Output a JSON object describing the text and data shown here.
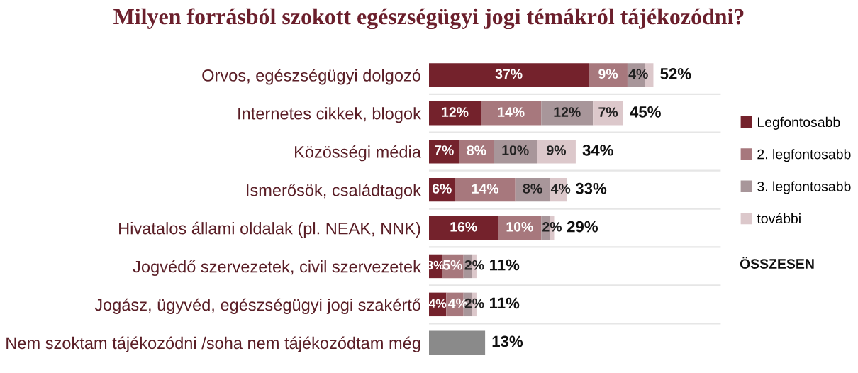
{
  "chart_data": {
    "type": "bar",
    "orientation": "horizontal",
    "stacked": true,
    "title": "Milyen forrásból szokott egészségügyi jogi témákról tájékozódni?",
    "categories": [
      "Orvos, egészségügyi dolgozó",
      "Internetes cikkek, blogok",
      "Közösségi média",
      "Ismerősök, családtagok",
      "Hivatalos állami oldalak (pl. NEAK, NNK)",
      "Jogvédő szervezetek, civil szervezetek",
      "Jogász, ügyvéd, egészségügyi jogi szakértő",
      "Nem szoktam tájékozódni /soha nem tájékozódtam még"
    ],
    "series": [
      {
        "name": "Legfontosabb",
        "color": "#74222c",
        "values": [
          37,
          12,
          7,
          6,
          16,
          3,
          4,
          null
        ],
        "value_labels": [
          "37%",
          "12%",
          "7%",
          "6%",
          "16%",
          "3%",
          "4%",
          null
        ]
      },
      {
        "name": "2. legfontosabb",
        "color": "#a7787d",
        "values": [
          9,
          14,
          8,
          14,
          10,
          5,
          4,
          null
        ],
        "value_labels": [
          "9%",
          "14%",
          "8%",
          "14%",
          "10%",
          "5%",
          "4%",
          null
        ]
      },
      {
        "name": "3. legfontosabb",
        "color": "#a8969a",
        "values": [
          4,
          12,
          10,
          8,
          2,
          2,
          2,
          null
        ],
        "value_labels": [
          "4%",
          "12%",
          "10%",
          "8%",
          "2%",
          "2%",
          "2%",
          null
        ]
      },
      {
        "name": "további",
        "color": "#dcc8cb",
        "values": [
          2,
          7,
          9,
          4,
          1,
          1,
          1,
          null
        ],
        "value_labels": [
          null,
          "7%",
          "9%",
          "4%",
          null,
          null,
          null,
          null
        ]
      },
      {
        "color": "#8a8a8a",
        "values": [
          null,
          null,
          null,
          null,
          null,
          null,
          null,
          13
        ]
      }
    ],
    "totals": [
      "52%",
      "45%",
      "34%",
      "33%",
      "29%",
      "11%",
      "11%",
      "13%"
    ],
    "legend": "right",
    "annotations": [
      "ÖSSZESEN"
    ]
  }
}
